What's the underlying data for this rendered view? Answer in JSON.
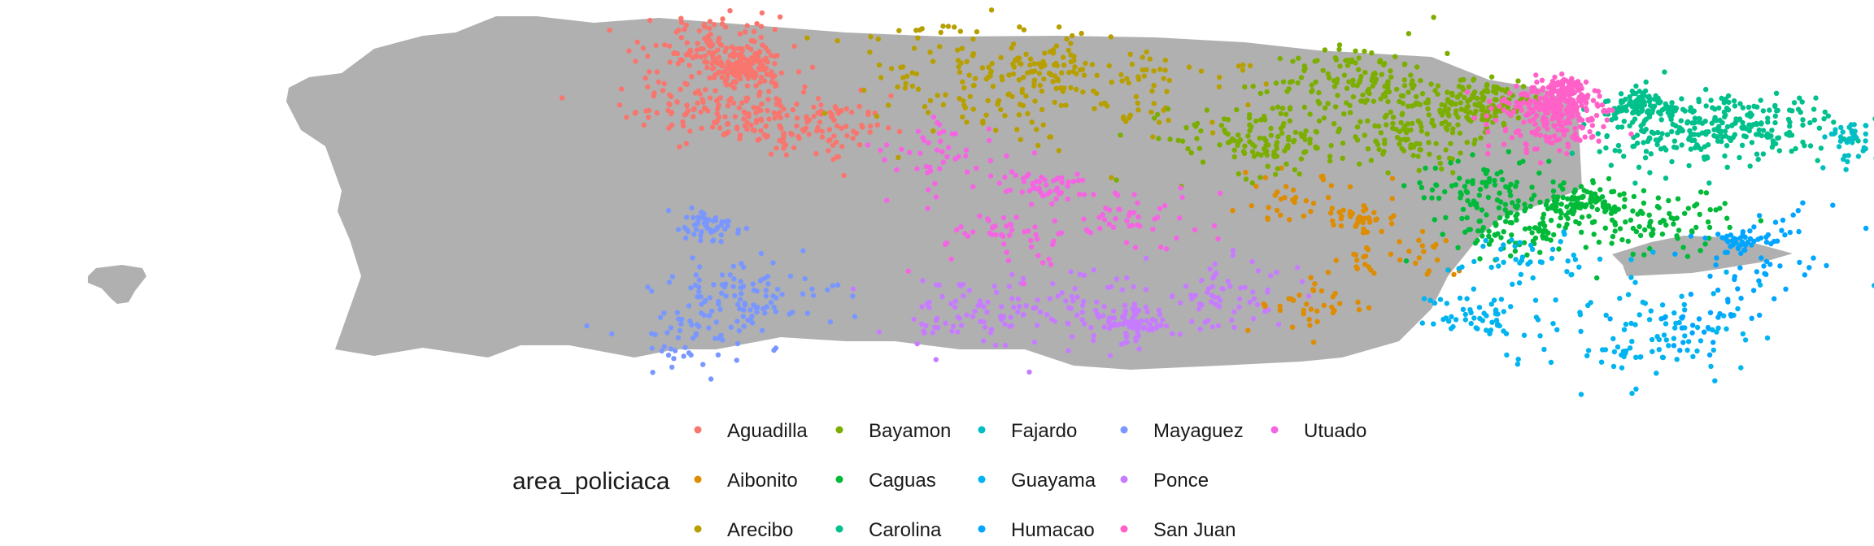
{
  "chart_data": {
    "type": "scatter",
    "title": "",
    "xlabel": "",
    "ylabel": "",
    "xlim": [
      -67.3,
      -65.2
    ],
    "ylim": [
      17.85,
      18.56
    ],
    "grid": false,
    "legend": {
      "title": "area_policiaca",
      "placement": "bottom",
      "columns": 5
    },
    "map_color": "#b0b0b0",
    "series": [
      {
        "name": "Aguadilla",
        "color": "#F8766D",
        "centers": [
          [
            -67.1,
            18.47
          ],
          [
            -67.14,
            18.4
          ],
          [
            -67.02,
            18.36
          ],
          [
            -67.15,
            18.5
          ]
        ],
        "spread": 0.03,
        "count": 480
      },
      {
        "name": "Aibonito",
        "color": "#DE8C00",
        "centers": [
          [
            -66.32,
            18.2
          ],
          [
            -66.27,
            18.13
          ],
          [
            -66.38,
            18.05
          ],
          [
            -66.4,
            18.24
          ]
        ],
        "spread": 0.025,
        "count": 140
      },
      {
        "name": "Arecibo",
        "color": "#B79F00",
        "centers": [
          [
            -66.72,
            18.47
          ],
          [
            -66.85,
            18.47
          ],
          [
            -66.6,
            18.44
          ],
          [
            -66.78,
            18.4
          ]
        ],
        "spread": 0.045,
        "count": 260
      },
      {
        "name": "Bayamon",
        "color": "#7CAE00",
        "centers": [
          [
            -66.16,
            18.41
          ],
          [
            -66.32,
            18.44
          ],
          [
            -66.24,
            18.36
          ],
          [
            -66.45,
            18.34
          ]
        ],
        "spread": 0.035,
        "count": 520
      },
      {
        "name": "Caguas",
        "color": "#00BA38",
        "centers": [
          [
            -66.04,
            18.23
          ],
          [
            -66.12,
            18.18
          ],
          [
            -65.95,
            18.2
          ],
          [
            -66.16,
            18.25
          ]
        ],
        "spread": 0.03,
        "count": 360
      },
      {
        "name": "Carolina",
        "color": "#00C08B",
        "centers": [
          [
            -65.96,
            18.4
          ],
          [
            -65.88,
            18.38
          ],
          [
            -65.8,
            18.36
          ],
          [
            -65.94,
            18.34
          ]
        ],
        "spread": 0.03,
        "count": 380
      },
      {
        "name": "Fajardo",
        "color": "#00BFC4",
        "centers": [
          [
            -65.7,
            18.35
          ],
          [
            -65.64,
            18.3
          ],
          [
            -65.33,
            18.3
          ],
          [
            -65.45,
            18.11
          ]
        ],
        "spread": 0.025,
        "count": 120
      },
      {
        "name": "Guayama",
        "color": "#00B4EF",
        "centers": [
          [
            -66.17,
            18.03
          ],
          [
            -66.0,
            17.99
          ],
          [
            -65.9,
            18.0
          ],
          [
            -66.1,
            18.12
          ]
        ],
        "spread": 0.04,
        "count": 200
      },
      {
        "name": "Humacao",
        "color": "#00A5FF",
        "centers": [
          [
            -65.85,
            18.16
          ],
          [
            -65.82,
            18.11
          ],
          [
            -65.88,
            18.02
          ],
          [
            -65.8,
            18.18
          ]
        ],
        "spread": 0.025,
        "count": 110
      },
      {
        "name": "Mayaguez",
        "color": "#7997FF",
        "centers": [
          [
            -67.15,
            18.19
          ],
          [
            -67.12,
            18.08
          ],
          [
            -67.08,
            18.05
          ],
          [
            -67.17,
            17.99
          ]
        ],
        "spread": 0.03,
        "count": 200
      },
      {
        "name": "Ponce",
        "color": "#C77CFF",
        "centers": [
          [
            -66.61,
            18.01
          ],
          [
            -66.5,
            18.06
          ],
          [
            -66.68,
            18.05
          ],
          [
            -66.82,
            18.03
          ]
        ],
        "spread": 0.03,
        "count": 280
      },
      {
        "name": "San Juan",
        "color": "#FF61C9",
        "centers": [
          [
            -66.06,
            18.43
          ],
          [
            -66.06,
            18.39
          ],
          [
            -66.08,
            18.36
          ],
          [
            -66.09,
            18.4
          ]
        ],
        "spread": 0.02,
        "count": 340
      },
      {
        "name": "Utuado",
        "color": "#F564E3",
        "centers": [
          [
            -66.72,
            18.26
          ],
          [
            -66.86,
            18.31
          ],
          [
            -66.78,
            18.18
          ],
          [
            -66.6,
            18.2
          ]
        ],
        "spread": 0.03,
        "count": 190
      }
    ]
  }
}
